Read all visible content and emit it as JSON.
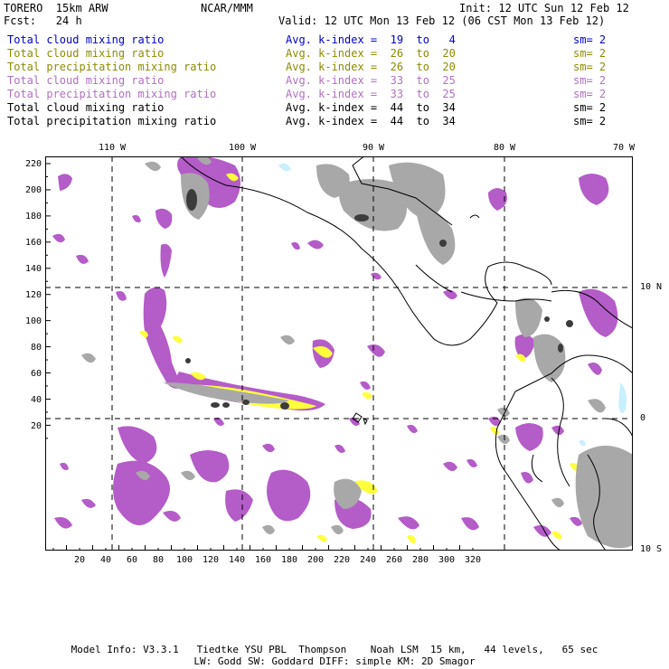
{
  "header": {
    "model": "TORERO  15km ARW",
    "org": "NCAR/MMM",
    "init": "Init: 12 UTC Sun 12 Feb 12",
    "fcst": "Fcst:   24 h",
    "valid": "Valid: 12 UTC Mon 13 Feb 12 (06 CST Mon 13 Feb 12)"
  },
  "legend": [
    {
      "label": "Total cloud mixing ratio",
      "kindex": "Avg. k-index =  19  to   4",
      "sm": "sm= 2",
      "color": "#0000cc"
    },
    {
      "label": "Total cloud mixing ratio",
      "kindex": "Avg. k-index =  26  to  20",
      "sm": "sm= 2",
      "color": "#8c8c00"
    },
    {
      "label": "Total precipitation mixing ratio",
      "kindex": "Avg. k-index =  26  to  20",
      "sm": "sm= 2",
      "color": "#8c8c00"
    },
    {
      "label": "Total cloud mixing ratio",
      "kindex": "Avg. k-index =  33  to  25",
      "sm": "sm= 2",
      "color": "#b070c0"
    },
    {
      "label": "Total precipitation mixing ratio",
      "kindex": "Avg. k-index =  33  to  25",
      "sm": "sm= 2",
      "color": "#b070c0"
    },
    {
      "label": "Total cloud mixing ratio",
      "kindex": "Avg. k-index =  44  to  34",
      "sm": "sm= 2",
      "color": "#000000"
    },
    {
      "label": "Total precipitation mixing ratio",
      "kindex": "Avg. k-index =  44  to  34",
      "sm": "sm= 2",
      "color": "#000000"
    }
  ],
  "axes": {
    "top_labels": [
      "110 W",
      "100 W",
      "90 W",
      "80 W",
      "70 W"
    ],
    "right_labels": [
      "10 N",
      "0",
      "10 S"
    ],
    "left_ticks": [
      "220",
      "200",
      "180",
      "160",
      "140",
      "120",
      "100",
      "80",
      "60",
      "40",
      "20"
    ],
    "bottom_ticks": [
      "20",
      "40",
      "60",
      "80",
      "100",
      "120",
      "140",
      "160",
      "180",
      "200",
      "220",
      "240",
      "260",
      "280",
      "300",
      "320"
    ]
  },
  "colors": {
    "purple": "#b45cc8",
    "yellow": "#ffff3c",
    "gray": "#a8a8a8",
    "dark": "#3c3c3c",
    "light_blue": "#c8f0ff"
  },
  "footer": {
    "line1": "Model Info: V3.3.1   Tiedtke YSU PBL  Thompson    Noah LSM  15 km,   44 levels,   65 sec",
    "line2": "LW: Godd SW: Goddard DIFF: simple KM: 2D Smagor"
  }
}
